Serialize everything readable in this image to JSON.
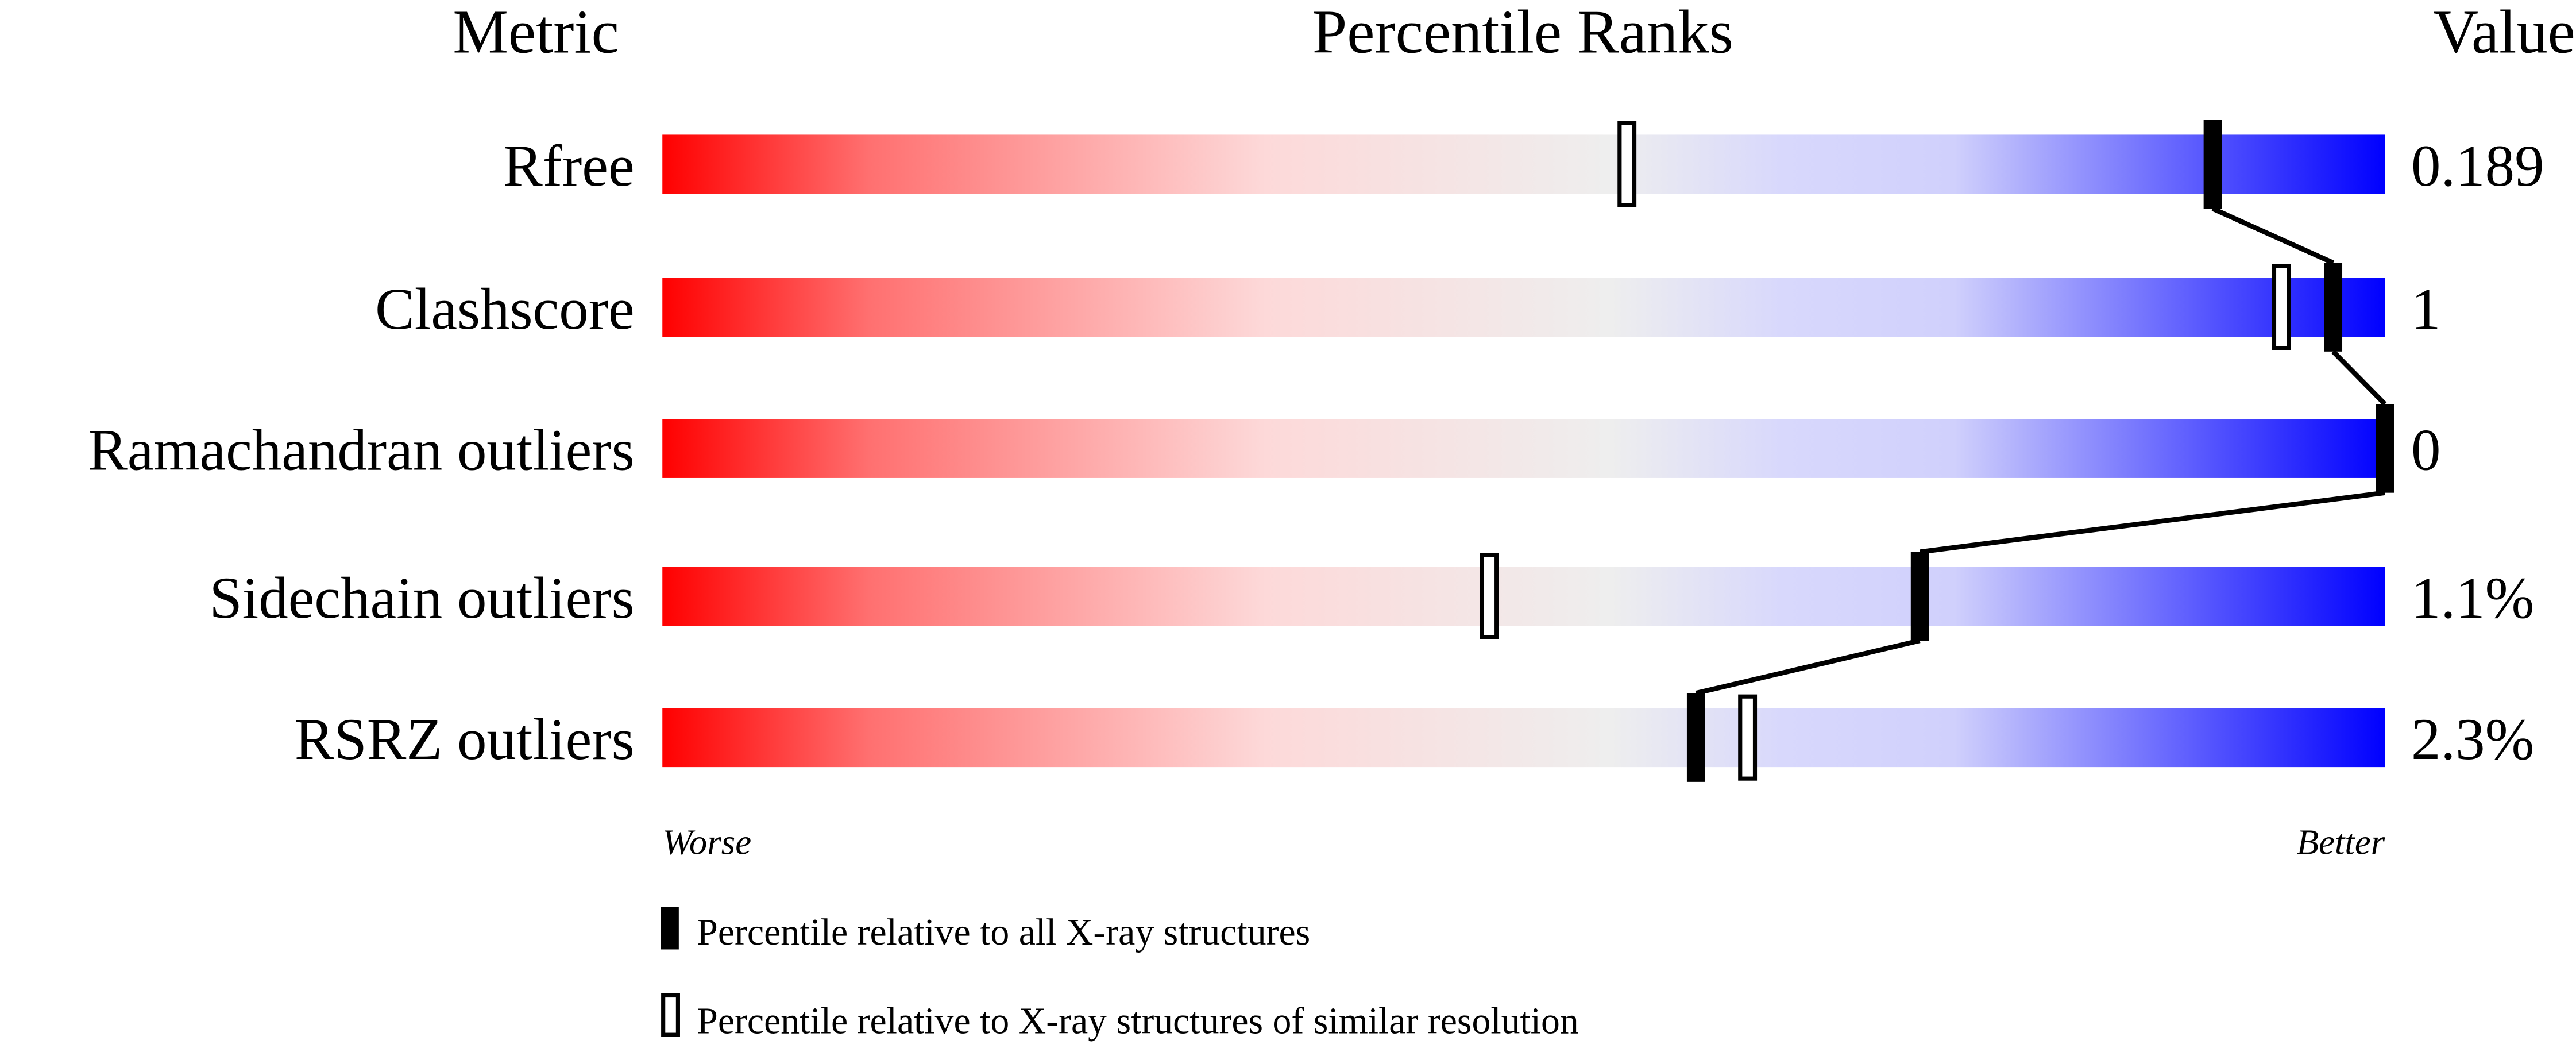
{
  "chart_data": {
    "type": "bar",
    "subtype": "percentile-slider",
    "headers": {
      "metric": "Metric",
      "ranks": "Percentile Ranks",
      "value": "Value"
    },
    "xlim": [
      0,
      100
    ],
    "axis_labels": {
      "left": "Worse",
      "right": "Better"
    },
    "metrics": [
      {
        "name": "Rfree",
        "value": "0.189",
        "percentile_all": 90,
        "percentile_similar": 56
      },
      {
        "name": "Clashscore",
        "value": "1",
        "percentile_all": 97,
        "percentile_similar": 94
      },
      {
        "name": "Ramachandran outliers",
        "value": "0",
        "percentile_all": 100,
        "percentile_similar": null
      },
      {
        "name": "Sidechain outliers",
        "value": "1.1%",
        "percentile_all": 73,
        "percentile_similar": 48
      },
      {
        "name": "RSRZ outliers",
        "value": "2.3%",
        "percentile_all": 60,
        "percentile_similar": 63
      }
    ],
    "legend": {
      "placement": "bottom",
      "all": "Percentile relative to all X-ray structures",
      "similar": "Percentile relative to X-ray structures of similar resolution"
    },
    "gradient_colors": [
      "#ff0000",
      "#ff7777",
      "#fddddd",
      "#eeeeee",
      "#d8d8ff",
      "#0000ff"
    ]
  }
}
